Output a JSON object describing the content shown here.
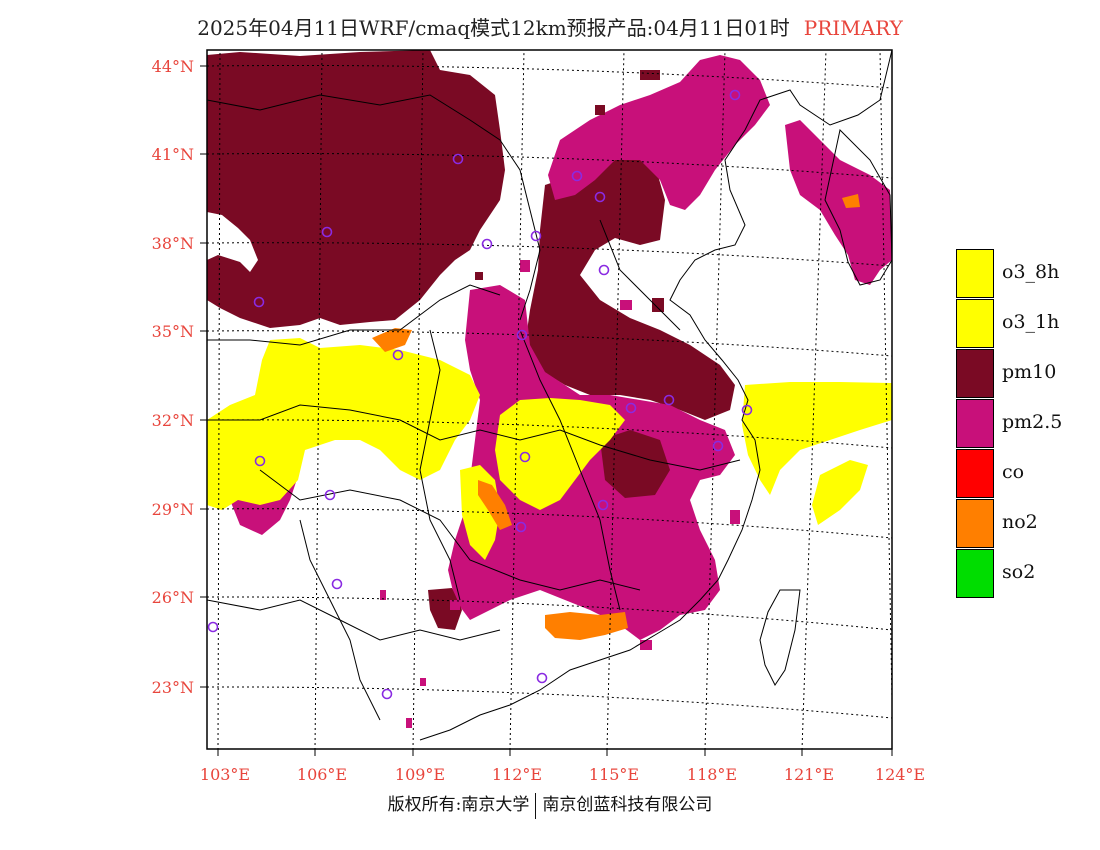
{
  "title": {
    "main": "2025年04月11日WRF/cmaq模式12km预报产品:04月11日01时",
    "tag": "PRIMARY"
  },
  "map": {
    "lat_labels": [
      "44°N",
      "41°N",
      "38°N",
      "35°N",
      "32°N",
      "29°N",
      "26°N",
      "23°N"
    ],
    "lon_labels": [
      "103°E",
      "106°E",
      "109°E",
      "112°E",
      "115°E",
      "118°E",
      "121°E",
      "124°E"
    ],
    "label_color": "#e8453c"
  },
  "legend": [
    {
      "label": "o3_8h",
      "color": "#ffff00"
    },
    {
      "label": "o3_1h",
      "color": "#ffff00"
    },
    {
      "label": "pm10",
      "color": "#7a0a24"
    },
    {
      "label": "pm2.5",
      "color": "#c8107a"
    },
    {
      "label": "co",
      "color": "#ff0000"
    },
    {
      "label": "no2",
      "color": "#ff7f00"
    },
    {
      "label": "so2",
      "color": "#00dd00"
    }
  ],
  "footer": {
    "left": "版权所有:南京大学",
    "right": "南京创蓝科技有限公司"
  }
}
